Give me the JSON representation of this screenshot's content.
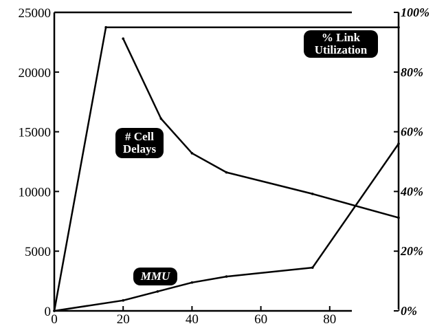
{
  "chart_data": {
    "type": "line",
    "title": "",
    "xlabel": "",
    "ylabel": "",
    "xlim": [
      0,
      100
    ],
    "x_ticks": [
      0,
      20,
      40,
      60,
      80
    ],
    "ylim_left": [
      0,
      25000
    ],
    "y_ticks_left": [
      0,
      5000,
      10000,
      15000,
      20000,
      25000
    ],
    "ylim_right": [
      0,
      100
    ],
    "y_ticks_right": [
      0,
      20,
      40,
      60,
      80,
      100
    ],
    "y_tick_labels_right": [
      "0%",
      "20%",
      "40%",
      "60%",
      "80%",
      "100%"
    ],
    "grid": false,
    "legend": "none",
    "series": [
      {
        "name": "% Link Utilization",
        "axis": "right",
        "x": [
          0,
          15,
          100
        ],
        "y": [
          0,
          95,
          95
        ]
      },
      {
        "name": "# Cell Delays",
        "axis": "left",
        "x": [
          20,
          31,
          40,
          50,
          75,
          100
        ],
        "y": [
          22800,
          16100,
          13200,
          11600,
          9800,
          7800
        ]
      },
      {
        "name": "MMU",
        "axis": "right",
        "x": [
          0,
          20,
          30,
          40,
          50,
          75,
          100
        ],
        "y": [
          0,
          3.5,
          6.5,
          9.5,
          11.5,
          14.5,
          56
        ]
      }
    ],
    "annotations": [
      {
        "id": "link",
        "lines": [
          "% Link",
          "Utilization"
        ],
        "italic": false
      },
      {
        "id": "cell",
        "lines": [
          "# Cell",
          "Delays"
        ],
        "italic": false
      },
      {
        "id": "mmu",
        "lines": [
          "MMU"
        ],
        "italic": true
      }
    ],
    "colors": {
      "line": "#000000",
      "label_bg": "#000000",
      "label_text": "#ffffff"
    }
  }
}
